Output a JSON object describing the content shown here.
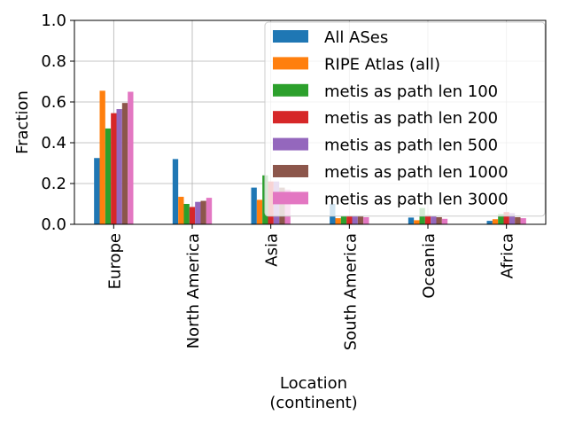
{
  "chart_data": {
    "type": "bar",
    "xlabel": "Location\n(continent)",
    "ylabel": "Fraction",
    "ylim": [
      0,
      1.0
    ],
    "yticks": [
      "0.0",
      "0.2",
      "0.4",
      "0.6",
      "0.8",
      "1.0"
    ],
    "grid": true,
    "legend_position": "top-right",
    "categories": [
      "Europe",
      "North America",
      "Asia",
      "South America",
      "Oceania",
      "Africa"
    ],
    "series": [
      {
        "name": "All ASes",
        "color": "#1f77b4",
        "values": [
          0.325,
          0.32,
          0.18,
          0.1,
          0.033,
          0.017
        ]
      },
      {
        "name": "RIPE Atlas (all)",
        "color": "#ff7f0e",
        "values": [
          0.655,
          0.135,
          0.12,
          0.03,
          0.02,
          0.025
        ]
      },
      {
        "name": "metis as path len 100",
        "color": "#2ca02c",
        "values": [
          0.47,
          0.1,
          0.24,
          0.04,
          0.08,
          0.05
        ]
      },
      {
        "name": "metis as path len 200",
        "color": "#d62728",
        "values": [
          0.545,
          0.085,
          0.21,
          0.04,
          0.045,
          0.06
        ]
      },
      {
        "name": "metis as path len 500",
        "color": "#9467bd",
        "values": [
          0.565,
          0.11,
          0.21,
          0.04,
          0.04,
          0.055
        ]
      },
      {
        "name": "metis as path len 1000",
        "color": "#8c564b",
        "values": [
          0.595,
          0.115,
          0.18,
          0.04,
          0.035,
          0.035
        ]
      },
      {
        "name": "metis as path len 3000",
        "color": "#e377c2",
        "values": [
          0.65,
          0.13,
          0.17,
          0.035,
          0.027,
          0.03
        ]
      }
    ]
  }
}
